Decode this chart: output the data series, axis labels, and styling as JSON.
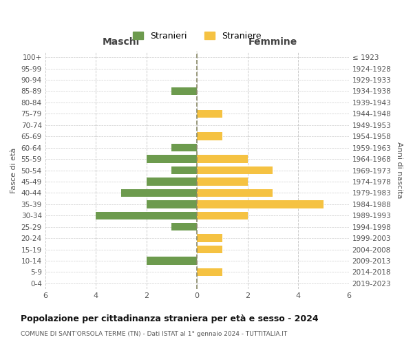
{
  "age_groups": [
    "100+",
    "95-99",
    "90-94",
    "85-89",
    "80-84",
    "75-79",
    "70-74",
    "65-69",
    "60-64",
    "55-59",
    "50-54",
    "45-49",
    "40-44",
    "35-39",
    "30-34",
    "25-29",
    "20-24",
    "15-19",
    "10-14",
    "5-9",
    "0-4"
  ],
  "birth_years": [
    "≤ 1923",
    "1924-1928",
    "1929-1933",
    "1934-1938",
    "1939-1943",
    "1944-1948",
    "1949-1953",
    "1954-1958",
    "1959-1963",
    "1964-1968",
    "1969-1973",
    "1974-1978",
    "1979-1983",
    "1984-1988",
    "1989-1993",
    "1994-1998",
    "1999-2003",
    "2004-2008",
    "2009-2013",
    "2014-2018",
    "2019-2023"
  ],
  "males": [
    0,
    0,
    0,
    1,
    0,
    0,
    0,
    0,
    1,
    2,
    1,
    2,
    3,
    2,
    4,
    1,
    0,
    0,
    2,
    0,
    0
  ],
  "females": [
    0,
    0,
    0,
    0,
    0,
    1,
    0,
    1,
    0,
    2,
    3,
    2,
    3,
    5,
    2,
    0,
    1,
    1,
    0,
    1,
    0
  ],
  "male_color": "#6d9b4e",
  "female_color": "#f5c242",
  "title": "Popolazione per cittadinanza straniera per età e sesso - 2024",
  "subtitle": "COMUNE DI SANT'ORSOLA TERME (TN) - Dati ISTAT al 1° gennaio 2024 - TUTTITALIA.IT",
  "ylabel_left": "Fasce di età",
  "ylabel_right": "Anni di nascita",
  "xlabel_left": "Maschi",
  "xlabel_top_right": "Femmine",
  "legend_males": "Stranieri",
  "legend_females": "Straniere",
  "xlim": 6,
  "background_color": "#ffffff",
  "grid_color": "#cccccc"
}
